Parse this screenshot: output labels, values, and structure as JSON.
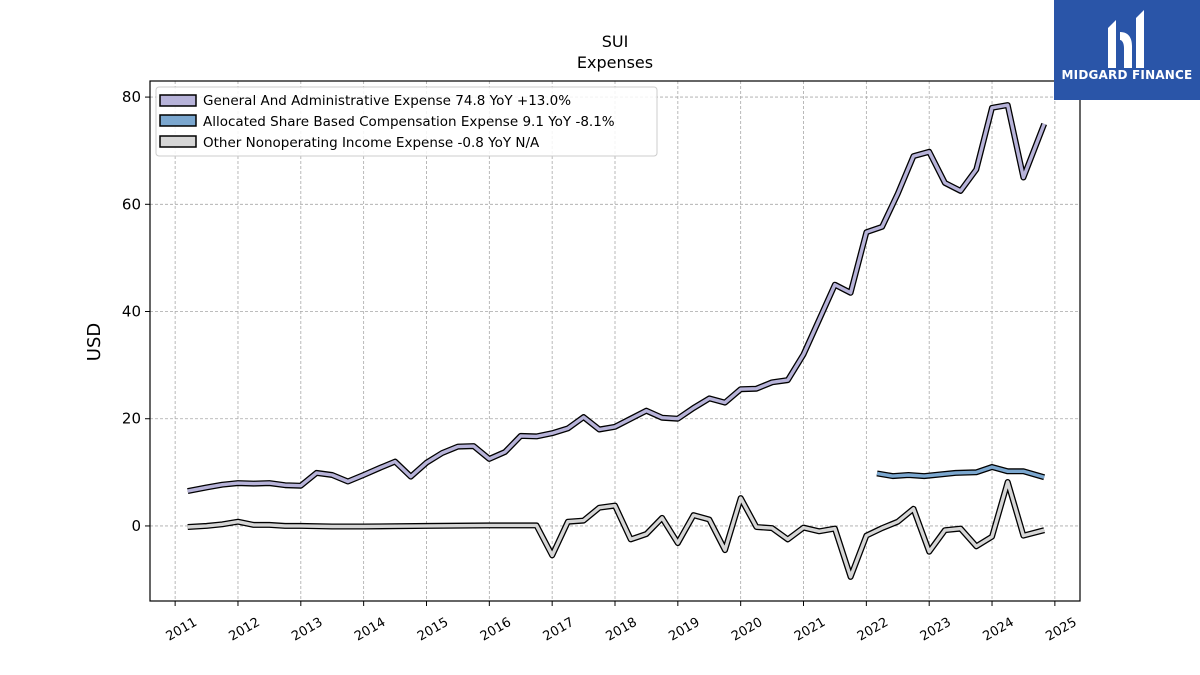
{
  "brand": {
    "name": "MIDGARD FINANCE",
    "background_color": "#2a55a8",
    "icon": "midgard-logo-icon"
  },
  "chart_data": {
    "type": "line",
    "title": "SUI",
    "subtitle": "Expenses",
    "xlabel": "",
    "ylabel": "USD",
    "xlim": [
      2010.6,
      2025.4
    ],
    "ylim": [
      -14,
      83
    ],
    "xticks": [
      "2011",
      "2012",
      "2013",
      "2014",
      "2015",
      "2016",
      "2017",
      "2018",
      "2019",
      "2020",
      "2021",
      "2022",
      "2023",
      "2024",
      "2025"
    ],
    "yticks": [
      0,
      20,
      40,
      60,
      80
    ],
    "grid": true,
    "legend_position": "top-left",
    "series": [
      {
        "name": "General And Administrative Expense",
        "legend": "General And Administrative Expense  74.8 YoY +13.0%",
        "color": "#b7b3d9",
        "points": [
          [
            2011.2,
            6.5
          ],
          [
            2011.5,
            7.2
          ],
          [
            2011.75,
            7.7
          ],
          [
            2012.0,
            8.0
          ],
          [
            2012.25,
            7.9
          ],
          [
            2012.5,
            8.0
          ],
          [
            2012.75,
            7.6
          ],
          [
            2013.0,
            7.5
          ],
          [
            2013.25,
            9.9
          ],
          [
            2013.5,
            9.5
          ],
          [
            2013.75,
            8.3
          ],
          [
            2014.0,
            9.5
          ],
          [
            2014.25,
            10.8
          ],
          [
            2014.5,
            12.0
          ],
          [
            2014.75,
            9.2
          ],
          [
            2015.0,
            11.8
          ],
          [
            2015.25,
            13.6
          ],
          [
            2015.5,
            14.8
          ],
          [
            2015.75,
            14.9
          ],
          [
            2016.0,
            12.5
          ],
          [
            2016.25,
            13.8
          ],
          [
            2016.5,
            16.8
          ],
          [
            2016.75,
            16.7
          ],
          [
            2017.0,
            17.3
          ],
          [
            2017.25,
            18.2
          ],
          [
            2017.5,
            20.3
          ],
          [
            2017.75,
            18.0
          ],
          [
            2018.0,
            18.5
          ],
          [
            2018.25,
            20.0
          ],
          [
            2018.5,
            21.5
          ],
          [
            2018.75,
            20.2
          ],
          [
            2019.0,
            20.0
          ],
          [
            2019.25,
            22.0
          ],
          [
            2019.5,
            23.8
          ],
          [
            2019.75,
            23.0
          ],
          [
            2020.0,
            25.5
          ],
          [
            2020.25,
            25.6
          ],
          [
            2020.5,
            26.8
          ],
          [
            2020.75,
            27.2
          ],
          [
            2021.0,
            32.0
          ],
          [
            2021.25,
            38.5
          ],
          [
            2021.5,
            45.0
          ],
          [
            2021.75,
            43.5
          ],
          [
            2022.0,
            54.8
          ],
          [
            2022.25,
            55.8
          ],
          [
            2022.5,
            62.0
          ],
          [
            2022.75,
            69.0
          ],
          [
            2023.0,
            69.8
          ],
          [
            2023.25,
            64.0
          ],
          [
            2023.5,
            62.5
          ],
          [
            2023.75,
            66.5
          ],
          [
            2024.0,
            78.0
          ],
          [
            2024.25,
            78.5
          ],
          [
            2024.5,
            65.0
          ],
          [
            2024.83,
            75.0
          ]
        ]
      },
      {
        "name": "Allocated Share Based Compensation Expense",
        "legend": "Allocated Share Based Compensation Expense  9.1 YoY -8.1%",
        "color": "#7ba7cf",
        "points": [
          [
            2022.17,
            9.8
          ],
          [
            2022.42,
            9.3
          ],
          [
            2022.67,
            9.5
          ],
          [
            2022.92,
            9.3
          ],
          [
            2023.17,
            9.6
          ],
          [
            2023.42,
            9.9
          ],
          [
            2023.75,
            10.0
          ],
          [
            2024.0,
            11.0
          ],
          [
            2024.25,
            10.2
          ],
          [
            2024.5,
            10.2
          ],
          [
            2024.83,
            9.1
          ]
        ]
      },
      {
        "name": "Other Nonoperating Income Expense",
        "legend": "Other Nonoperating Income Expense  -0.8 YoY N/A",
        "color": "#d6d6d6",
        "points": [
          [
            2011.2,
            -0.2
          ],
          [
            2011.5,
            0.0
          ],
          [
            2011.75,
            0.3
          ],
          [
            2012.0,
            0.8
          ],
          [
            2012.25,
            0.2
          ],
          [
            2012.5,
            0.2
          ],
          [
            2012.75,
            0.0
          ],
          [
            2013.0,
            0.0
          ],
          [
            2013.5,
            -0.1
          ],
          [
            2014.0,
            -0.1
          ],
          [
            2015.0,
            0.0
          ],
          [
            2016.0,
            0.1
          ],
          [
            2016.75,
            0.1
          ],
          [
            2017.0,
            -5.5
          ],
          [
            2017.25,
            0.8
          ],
          [
            2017.5,
            1.0
          ],
          [
            2017.75,
            3.4
          ],
          [
            2018.0,
            3.8
          ],
          [
            2018.25,
            -2.5
          ],
          [
            2018.5,
            -1.5
          ],
          [
            2018.75,
            1.5
          ],
          [
            2019.0,
            -3.2
          ],
          [
            2019.25,
            2.0
          ],
          [
            2019.5,
            1.2
          ],
          [
            2019.75,
            -4.5
          ],
          [
            2020.0,
            5.2
          ],
          [
            2020.25,
            -0.2
          ],
          [
            2020.5,
            -0.4
          ],
          [
            2020.75,
            -2.5
          ],
          [
            2021.0,
            -0.3
          ],
          [
            2021.25,
            -1.0
          ],
          [
            2021.5,
            -0.5
          ],
          [
            2021.75,
            -9.5
          ],
          [
            2022.0,
            -1.8
          ],
          [
            2022.25,
            -0.4
          ],
          [
            2022.5,
            0.8
          ],
          [
            2022.75,
            3.2
          ],
          [
            2023.0,
            -4.8
          ],
          [
            2023.25,
            -0.8
          ],
          [
            2023.5,
            -0.5
          ],
          [
            2023.75,
            -3.8
          ],
          [
            2024.0,
            -2.0
          ],
          [
            2024.25,
            8.2
          ],
          [
            2024.5,
            -1.8
          ],
          [
            2024.83,
            -0.8
          ]
        ]
      }
    ]
  }
}
